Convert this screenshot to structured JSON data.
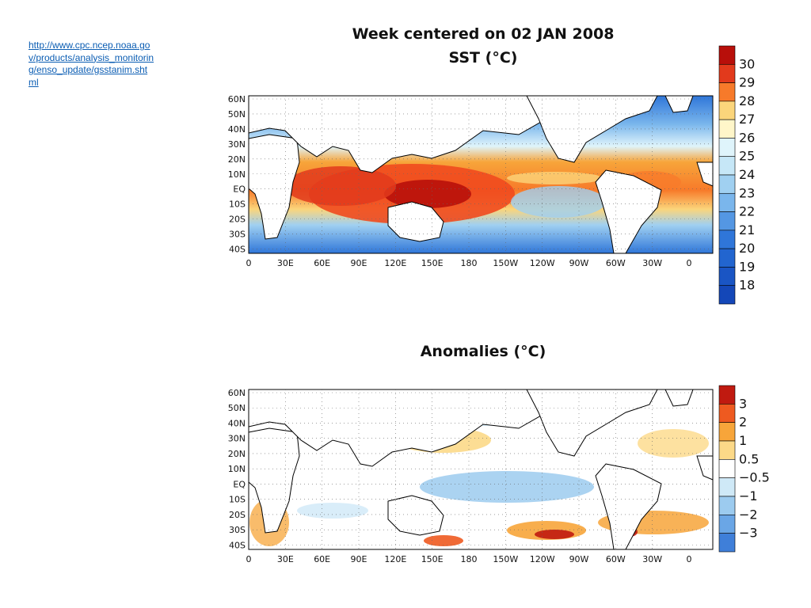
{
  "source_link": "http://www.cpc.ncep.noaa.gov/products/analysis_monitoring/enso_update/gsstanim.shtml",
  "sst_map": {
    "title_line1": "Week centered on 02 JAN 2008",
    "title_line2": "SST (°C)",
    "colorbar": {
      "labels": [
        "30",
        "29",
        "28",
        "27",
        "26",
        "25",
        "24",
        "23",
        "22",
        "21",
        "20",
        "19",
        "18"
      ],
      "colors": [
        "#b80f0a",
        "#e23a1c",
        "#f77a2a",
        "#fbd57b",
        "#fff6c9",
        "#dff4fb",
        "#c6e7f7",
        "#a0d0f1",
        "#7ab6ec",
        "#5497e3",
        "#2f76d9",
        "#2265cf",
        "#1a55c4",
        "#1447b8"
      ]
    },
    "lat_labels": [
      "60N",
      "50N",
      "40N",
      "30N",
      "20N",
      "10N",
      "EQ",
      "10S",
      "20S",
      "30S",
      "40S"
    ],
    "lon_labels": [
      "0",
      "30E",
      "60E",
      "90E",
      "120E",
      "150E",
      "180",
      "150W",
      "120W",
      "90W",
      "60W",
      "30W",
      "0"
    ]
  },
  "anomaly_map": {
    "title": "Anomalies (°C)",
    "colorbar": {
      "labels": [
        "3",
        "2",
        "1",
        "0.5",
        "−0.5",
        "−1",
        "−2",
        "−3"
      ],
      "colors": [
        "#c01a10",
        "#ee5a20",
        "#f7a53a",
        "#fcd988",
        "#ffffff",
        "#cfe9f7",
        "#9ccbef",
        "#6aa6e6",
        "#3f7fd9"
      ]
    },
    "lat_labels": [
      "60N",
      "50N",
      "40N",
      "30N",
      "20N",
      "10N",
      "EQ",
      "10S",
      "20S",
      "30S",
      "40S"
    ],
    "lon_labels": [
      "0",
      "30E",
      "60E",
      "90E",
      "120E",
      "150E",
      "180",
      "150W",
      "120W",
      "90W",
      "60W",
      "30W",
      "0"
    ]
  }
}
